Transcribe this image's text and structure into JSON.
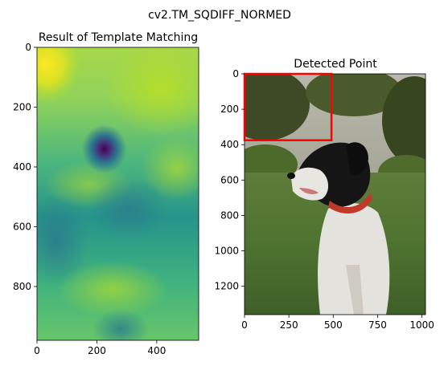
{
  "suptitle": "cv2.TM_SQDIFF_NORMED",
  "chart_data": [
    {
      "type": "heatmap",
      "title": "Result of Template Matching",
      "xlim": [
        0,
        540
      ],
      "ylim": [
        980,
        0
      ],
      "xticks": [
        0,
        200,
        400
      ],
      "yticks": [
        0,
        200,
        400,
        600,
        800
      ],
      "colormap": "viridis",
      "minimum_location": {
        "x": 225,
        "y": 340
      }
    },
    {
      "type": "image",
      "title": "Detected Point",
      "xlim": [
        0,
        1020
      ],
      "ylim": [
        1360,
        0
      ],
      "xticks": [
        0,
        250,
        500,
        750,
        1000
      ],
      "yticks": [
        0,
        200,
        400,
        600,
        800,
        1000,
        1200
      ],
      "detection_rectangle": {
        "x0": 0,
        "y0": 0,
        "x1": 490,
        "y1": 375,
        "color": "#ff0000"
      }
    }
  ]
}
